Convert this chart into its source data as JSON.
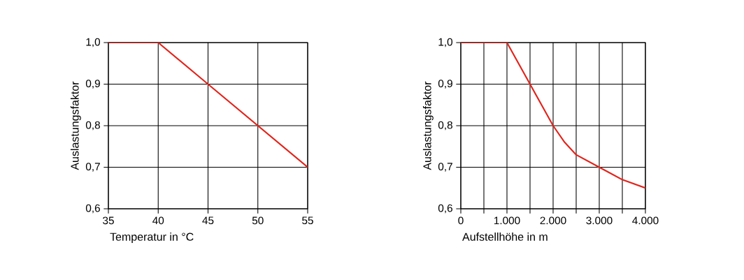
{
  "chart_data": [
    {
      "type": "line",
      "xlabel": "Temperatur in °C",
      "ylabel": "Auslastungsfaktor",
      "x": [
        35,
        40,
        45,
        50,
        55
      ],
      "series": [
        {
          "color": "#e2231a",
          "values": [
            1.0,
            1.0,
            0.9,
            0.8,
            0.7
          ]
        }
      ],
      "xlim": [
        35,
        55
      ],
      "ylim": [
        0.6,
        1.0
      ],
      "xticks": [
        35,
        40,
        45,
        50,
        55
      ],
      "yticks": [
        {
          "value": 0.6,
          "label": "0,6"
        },
        {
          "value": 0.7,
          "label": "0,7"
        },
        {
          "value": 0.8,
          "label": "0,8"
        },
        {
          "value": 0.9,
          "label": "0,9"
        },
        {
          "value": 1.0,
          "label": "1,0"
        }
      ],
      "grid": true
    },
    {
      "type": "line",
      "xlabel": "Aufstellhöhe in m",
      "ylabel": "Auslastungsfaktor",
      "x": [
        0,
        1000,
        1250,
        1500,
        1750,
        2000,
        2250,
        2500,
        3000,
        3500,
        4000
      ],
      "series": [
        {
          "color": "#e2231a",
          "values": [
            1.0,
            1.0,
            0.95,
            0.9,
            0.85,
            0.8,
            0.76,
            0.73,
            0.7,
            0.67,
            0.65
          ]
        }
      ],
      "xlim": [
        0,
        4000
      ],
      "ylim": [
        0.6,
        1.0
      ],
      "xticks": [
        0,
        {
          "value": 500,
          "label": null
        },
        {
          "value": 1000,
          "label": "1.000"
        },
        {
          "value": 1500,
          "label": null
        },
        {
          "value": 2000,
          "label": "2.000"
        },
        {
          "value": 2500,
          "label": null
        },
        {
          "value": 3000,
          "label": "3.000"
        },
        {
          "value": 3500,
          "label": null
        },
        {
          "value": 4000,
          "label": "4.000"
        }
      ],
      "yticks": [
        {
          "value": 0.6,
          "label": "0,6"
        },
        {
          "value": 0.7,
          "label": "0,7"
        },
        {
          "value": 0.8,
          "label": "0,8"
        },
        {
          "value": 0.9,
          "label": "0,9"
        },
        {
          "value": 1.0,
          "label": "1,0"
        }
      ],
      "grid": true
    }
  ]
}
